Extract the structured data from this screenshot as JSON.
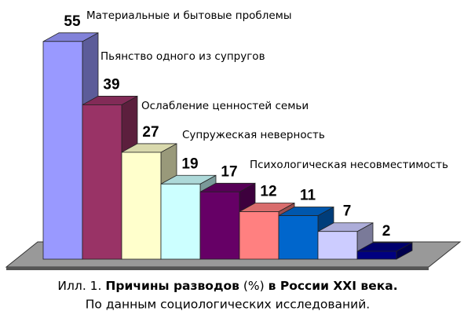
{
  "chart_data": {
    "type": "bar3d",
    "categories": [
      "Материальные и бытовые проблемы",
      "Пьянство одного из супругов",
      "Ослабление ценностей семьи",
      "Супружеская неверность",
      "Психологическая несовместимость",
      null,
      null,
      null,
      null
    ],
    "values": [
      55,
      39,
      27,
      19,
      17,
      12,
      11,
      7,
      2
    ],
    "colors": [
      "#9999ff",
      "#993366",
      "#ffffcc",
      "#ccffff",
      "#660066",
      "#ff8080",
      "#0066cc",
      "#ccccff",
      "#000080"
    ],
    "caption": {
      "line1": [
        {
          "text": "Илл. 1. ",
          "bold": false
        },
        {
          "text": "Причины разводов",
          "bold": true
        },
        {
          "text": " (%) ",
          "bold": false
        },
        {
          "text": "в России XXI века.",
          "bold": true
        }
      ],
      "line2": "По данным социологических исследований."
    }
  }
}
